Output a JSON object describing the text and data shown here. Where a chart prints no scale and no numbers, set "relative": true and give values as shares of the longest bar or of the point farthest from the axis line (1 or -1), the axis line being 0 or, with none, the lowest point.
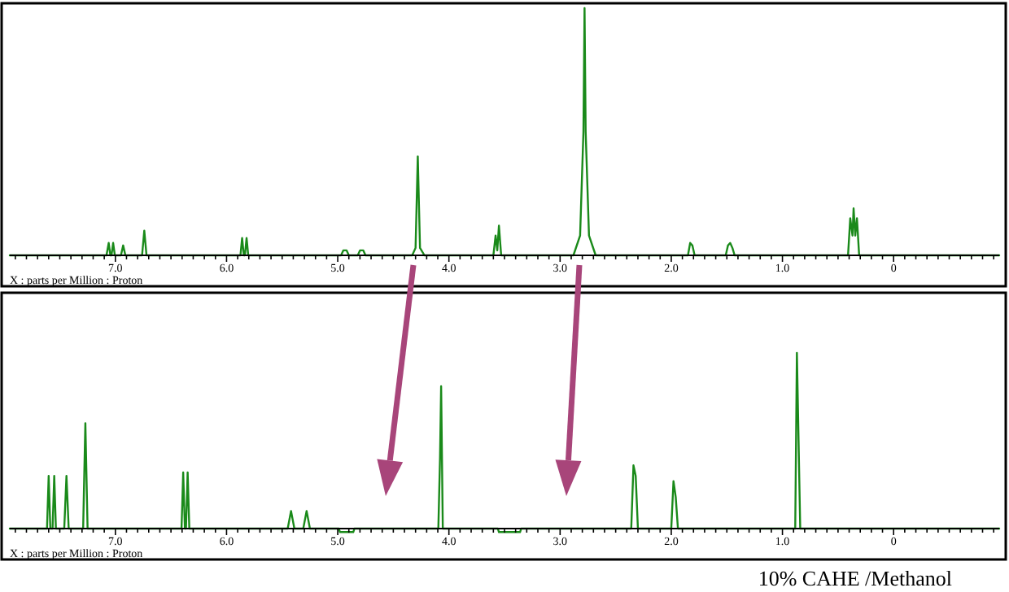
{
  "chart_data": [
    {
      "type": "line",
      "relative": true,
      "xlabel": "X : parts per Million : Proton",
      "xlim": [
        7.95,
        -0.95
      ],
      "xticks": [
        {
          "value": 7.9,
          "label": null
        },
        {
          "value": 7.8,
          "label": null
        },
        {
          "value": 7.7,
          "label": null
        },
        {
          "value": 7.6,
          "label": null
        },
        {
          "value": 7.5,
          "label": null
        },
        {
          "value": 7.4,
          "label": null
        },
        {
          "value": 7.3,
          "label": null
        },
        {
          "value": 7.2,
          "label": null
        },
        {
          "value": 7.1,
          "label": null
        },
        {
          "value": 7,
          "label": "7.0"
        },
        {
          "value": 6.9,
          "label": null
        },
        {
          "value": 6.8,
          "label": null
        },
        {
          "value": 6.7,
          "label": null
        },
        {
          "value": 6.6,
          "label": null
        },
        {
          "value": 6.5,
          "label": null
        },
        {
          "value": 6.4,
          "label": null
        },
        {
          "value": 6.3,
          "label": null
        },
        {
          "value": 6.2,
          "label": null
        },
        {
          "value": 6.1,
          "label": null
        },
        {
          "value": 6,
          "label": "6.0"
        },
        {
          "value": 5.9,
          "label": null
        },
        {
          "value": 5.8,
          "label": null
        },
        {
          "value": 5.7,
          "label": null
        },
        {
          "value": 5.6,
          "label": null
        },
        {
          "value": 5.5,
          "label": null
        },
        {
          "value": 5.4,
          "label": null
        },
        {
          "value": 5.3,
          "label": null
        },
        {
          "value": 5.2,
          "label": null
        },
        {
          "value": 5.1,
          "label": null
        },
        {
          "value": 5,
          "label": "5.0"
        },
        {
          "value": 4.9,
          "label": null
        },
        {
          "value": 4.8,
          "label": null
        },
        {
          "value": 4.7,
          "label": null
        },
        {
          "value": 4.6,
          "label": null
        },
        {
          "value": 4.5,
          "label": null
        },
        {
          "value": 4.4,
          "label": null
        },
        {
          "value": 4.3,
          "label": null
        },
        {
          "value": 4.2,
          "label": null
        },
        {
          "value": 4.1,
          "label": null
        },
        {
          "value": 4,
          "label": "4.0"
        },
        {
          "value": 3.9,
          "label": null
        },
        {
          "value": 3.8,
          "label": null
        },
        {
          "value": 3.7,
          "label": null
        },
        {
          "value": 3.6,
          "label": null
        },
        {
          "value": 3.5,
          "label": null
        },
        {
          "value": 3.4,
          "label": null
        },
        {
          "value": 3.3,
          "label": null
        },
        {
          "value": 3.2,
          "label": null
        },
        {
          "value": 3.1,
          "label": null
        },
        {
          "value": 3,
          "label": "3.0"
        },
        {
          "value": 2.9,
          "label": null
        },
        {
          "value": 2.8,
          "label": null
        },
        {
          "value": 2.7,
          "label": null
        },
        {
          "value": 2.6,
          "label": null
        },
        {
          "value": 2.5,
          "label": null
        },
        {
          "value": 2.4,
          "label": null
        },
        {
          "value": 2.3,
          "label": null
        },
        {
          "value": 2.2,
          "label": null
        },
        {
          "value": 2.1,
          "label": null
        },
        {
          "value": 2,
          "label": "2.0"
        },
        {
          "value": 1.9,
          "label": null
        },
        {
          "value": 1.8,
          "label": null
        },
        {
          "value": 1.7,
          "label": null
        },
        {
          "value": 1.6,
          "label": null
        },
        {
          "value": 1.5,
          "label": null
        },
        {
          "value": 1.4,
          "label": null
        },
        {
          "value": 1.3,
          "label": null
        },
        {
          "value": 1.2,
          "label": null
        },
        {
          "value": 1.1,
          "label": null
        },
        {
          "value": 1,
          "label": "1.0"
        },
        {
          "value": 0.9,
          "label": null
        },
        {
          "value": 0.8,
          "label": null
        },
        {
          "value": 0.7,
          "label": null
        },
        {
          "value": 0.6,
          "label": null
        },
        {
          "value": 0.5,
          "label": null
        },
        {
          "value": 0.4,
          "label": null
        },
        {
          "value": 0.3,
          "label": null
        },
        {
          "value": 0.2,
          "label": null
        },
        {
          "value": 0.1,
          "label": null
        },
        {
          "value": 0,
          "label": "0"
        },
        {
          "value": -0.1,
          "label": null
        },
        {
          "value": -0.2,
          "label": null
        },
        {
          "value": -0.3,
          "label": null
        },
        {
          "value": -0.4,
          "label": null
        },
        {
          "value": -0.5,
          "label": null
        },
        {
          "value": -0.6,
          "label": null
        },
        {
          "value": -0.7,
          "label": null
        },
        {
          "value": -0.8,
          "label": null
        },
        {
          "value": -0.9,
          "label": null
        }
      ],
      "series": [
        {
          "color": "#1a8a1a",
          "x": [
            7.95,
            7.08,
            7.06,
            7.045,
            7.035,
            7.02,
            7.005,
            6.95,
            6.93,
            6.91,
            6.76,
            6.74,
            6.72,
            5.875,
            5.86,
            5.845,
            5.835,
            5.82,
            5.805,
            4.97,
            4.95,
            4.92,
            4.9,
            4.82,
            4.8,
            4.77,
            4.75,
            4.33,
            4.3,
            4.28,
            4.26,
            4.22,
            3.6,
            3.58,
            3.565,
            3.55,
            3.53,
            2.88,
            2.82,
            2.79,
            2.78,
            2.77,
            2.74,
            2.68,
            1.85,
            1.83,
            1.81,
            1.79,
            1.51,
            1.49,
            1.47,
            1.45,
            1.43,
            0.41,
            0.39,
            0.37,
            0.36,
            0.345,
            0.33,
            0.31,
            -0.95
          ],
          "values": [
            0,
            0,
            0.05,
            0,
            0,
            0.05,
            0,
            0,
            0.04,
            0,
            0,
            0.1,
            0,
            0,
            0.07,
            0,
            0,
            0.07,
            0,
            0,
            0.02,
            0.02,
            0,
            0,
            0.02,
            0.02,
            0,
            0,
            0.03,
            0.4,
            0.03,
            0,
            0,
            0.08,
            0.02,
            0.12,
            0,
            0,
            0.08,
            0.5,
            1,
            0.5,
            0.08,
            0,
            0,
            0.05,
            0.04,
            0,
            0,
            0.04,
            0.05,
            0.03,
            0,
            0,
            0.15,
            0.08,
            0.19,
            0.08,
            0.15,
            0,
            0
          ]
        }
      ]
    },
    {
      "type": "line",
      "relative": true,
      "xlabel": "X : parts per Million : Proton",
      "xlim": [
        7.95,
        -0.95
      ],
      "annotations": [
        "10% CAHE /Methanol"
      ],
      "xticks": [
        {
          "value": 7.9,
          "label": null
        },
        {
          "value": 7.8,
          "label": null
        },
        {
          "value": 7.7,
          "label": null
        },
        {
          "value": 7.6,
          "label": null
        },
        {
          "value": 7.5,
          "label": null
        },
        {
          "value": 7.4,
          "label": null
        },
        {
          "value": 7.3,
          "label": null
        },
        {
          "value": 7.2,
          "label": null
        },
        {
          "value": 7.1,
          "label": null
        },
        {
          "value": 7,
          "label": "7.0"
        },
        {
          "value": 6.9,
          "label": null
        },
        {
          "value": 6.8,
          "label": null
        },
        {
          "value": 6.7,
          "label": null
        },
        {
          "value": 6.6,
          "label": null
        },
        {
          "value": 6.5,
          "label": null
        },
        {
          "value": 6.4,
          "label": null
        },
        {
          "value": 6.3,
          "label": null
        },
        {
          "value": 6.2,
          "label": null
        },
        {
          "value": 6.1,
          "label": null
        },
        {
          "value": 6,
          "label": "6.0"
        },
        {
          "value": 5.9,
          "label": null
        },
        {
          "value": 5.8,
          "label": null
        },
        {
          "value": 5.7,
          "label": null
        },
        {
          "value": 5.6,
          "label": null
        },
        {
          "value": 5.5,
          "label": null
        },
        {
          "value": 5.4,
          "label": null
        },
        {
          "value": 5.3,
          "label": null
        },
        {
          "value": 5.2,
          "label": null
        },
        {
          "value": 5.1,
          "label": null
        },
        {
          "value": 5,
          "label": "5.0"
        },
        {
          "value": 4.9,
          "label": null
        },
        {
          "value": 4.8,
          "label": null
        },
        {
          "value": 4.7,
          "label": null
        },
        {
          "value": 4.6,
          "label": null
        },
        {
          "value": 4.5,
          "label": null
        },
        {
          "value": 4.4,
          "label": null
        },
        {
          "value": 4.3,
          "label": null
        },
        {
          "value": 4.2,
          "label": null
        },
        {
          "value": 4.1,
          "label": null
        },
        {
          "value": 4,
          "label": "4.0"
        },
        {
          "value": 3.9,
          "label": null
        },
        {
          "value": 3.8,
          "label": null
        },
        {
          "value": 3.7,
          "label": null
        },
        {
          "value": 3.6,
          "label": null
        },
        {
          "value": 3.5,
          "label": null
        },
        {
          "value": 3.4,
          "label": null
        },
        {
          "value": 3.3,
          "label": null
        },
        {
          "value": 3.2,
          "label": null
        },
        {
          "value": 3.1,
          "label": null
        },
        {
          "value": 3,
          "label": "3.0"
        },
        {
          "value": 2.9,
          "label": null
        },
        {
          "value": 2.8,
          "label": null
        },
        {
          "value": 2.7,
          "label": null
        },
        {
          "value": 2.6,
          "label": null
        },
        {
          "value": 2.5,
          "label": null
        },
        {
          "value": 2.4,
          "label": null
        },
        {
          "value": 2.3,
          "label": null
        },
        {
          "value": 2.2,
          "label": null
        },
        {
          "value": 2.1,
          "label": null
        },
        {
          "value": 2,
          "label": "2.0"
        },
        {
          "value": 1.9,
          "label": null
        },
        {
          "value": 1.8,
          "label": null
        },
        {
          "value": 1.7,
          "label": null
        },
        {
          "value": 1.6,
          "label": null
        },
        {
          "value": 1.5,
          "label": null
        },
        {
          "value": 1.4,
          "label": null
        },
        {
          "value": 1.3,
          "label": null
        },
        {
          "value": 1.2,
          "label": null
        },
        {
          "value": 1.1,
          "label": null
        },
        {
          "value": 1,
          "label": "1.0"
        },
        {
          "value": 0.9,
          "label": null
        },
        {
          "value": 0.8,
          "label": null
        },
        {
          "value": 0.7,
          "label": null
        },
        {
          "value": 0.6,
          "label": null
        },
        {
          "value": 0.5,
          "label": null
        },
        {
          "value": 0.4,
          "label": null
        },
        {
          "value": 0.3,
          "label": null
        },
        {
          "value": 0.2,
          "label": null
        },
        {
          "value": 0.1,
          "label": null
        },
        {
          "value": 0,
          "label": "0"
        },
        {
          "value": -0.1,
          "label": null
        },
        {
          "value": -0.2,
          "label": null
        },
        {
          "value": -0.3,
          "label": null
        },
        {
          "value": -0.4,
          "label": null
        },
        {
          "value": -0.5,
          "label": null
        },
        {
          "value": -0.6,
          "label": null
        },
        {
          "value": -0.7,
          "label": null
        },
        {
          "value": -0.8,
          "label": null
        },
        {
          "value": -0.9,
          "label": null
        }
      ],
      "series": [
        {
          "color": "#1a8a1a",
          "x": [
            7.95,
            7.615,
            7.6,
            7.585,
            7.565,
            7.55,
            7.535,
            7.46,
            7.44,
            7.42,
            7.29,
            7.27,
            7.25,
            6.405,
            6.39,
            6.375,
            6.365,
            6.35,
            6.335,
            5.45,
            5.42,
            5.39,
            5.31,
            5.28,
            5.25,
            4.99,
            4.98,
            4.86,
            4.85,
            4.095,
            4.08,
            4.07,
            4.055,
            3.56,
            3.55,
            3.36,
            3.35,
            2.36,
            2.34,
            2.32,
            2.3,
            2,
            1.98,
            1.96,
            1.94,
            0.885,
            0.87,
            0.855,
            0.84,
            -0.95
          ],
          "values": [
            0,
            0,
            0.3,
            0,
            0,
            0.3,
            0,
            0,
            0.3,
            0,
            0,
            0.6,
            0,
            0,
            0.32,
            0,
            0,
            0.32,
            0,
            0,
            0.1,
            0,
            0,
            0.1,
            0,
            0,
            -0.02,
            -0.02,
            0,
            0,
            0.4,
            0.81,
            0,
            0,
            -0.02,
            -0.02,
            0,
            0,
            0.36,
            0.3,
            0,
            0,
            0.27,
            0.18,
            0,
            0,
            1,
            0.5,
            0,
            0
          ]
        }
      ]
    }
  ]
}
